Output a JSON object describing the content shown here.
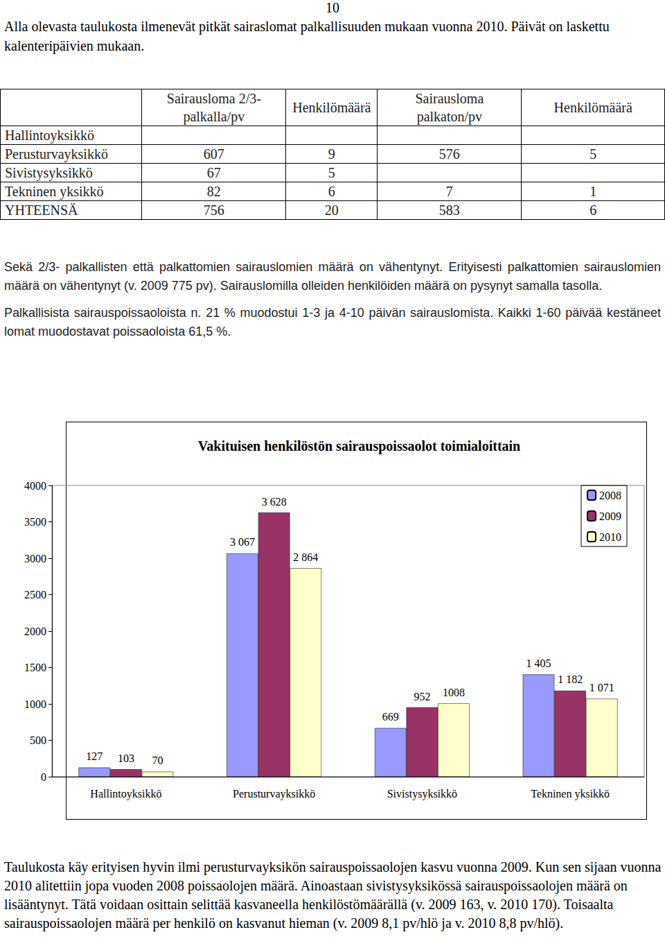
{
  "page_number": "10",
  "intro": "Alla olevasta taulukosta ilmenevät pitkät sairaslomat palkallisuuden mukaan vuonna 2010. Päivät on laskettu kalenteripäivien mukaan.",
  "table": {
    "header": [
      null,
      [
        "Sairausloma 2/3-",
        "palkalla/pv"
      ],
      [
        "Henkilömäärä"
      ],
      [
        "Sairausloma",
        "palkaton/pv"
      ],
      [
        "Henkilömäärä"
      ]
    ],
    "rows": [
      [
        "Hallintoyksikkö",
        null,
        null,
        null,
        null
      ],
      [
        "Perusturvayksikkö",
        607,
        9,
        576,
        5
      ],
      [
        "Sivistysyksikkö",
        67,
        5,
        null,
        null
      ],
      [
        "Tekninen yksikkö",
        82,
        6,
        7,
        1
      ],
      [
        "YHTEENSÄ",
        756,
        20,
        583,
        6
      ]
    ]
  },
  "paragraphs": [
    "Sekä 2/3- palkallisten että palkattomien sairauslomien määrä on vähentynyt. Erityisesti palkattomien sairauslomien määrä on vähentynyt (v. 2009 775 pv). Sairauslomilla olleiden henkilöiden määrä on pysynyt samalla tasolla.",
    "Palkallisista sairauspoissaoloista n. 21 % muodostui 1-3 ja 4-10 päivän sairauslomista. Kaikki 1-60 päivää kestäneet lomat muodostavat poissaoloista 61,5 %."
  ],
  "chart_data": {
    "type": "bar",
    "title": "Vakituisen henkilöstön sairauspoissaolot toimialoittain",
    "categories": [
      "Hallintoyksikkö",
      "Perusturvayksikkö",
      "Sivistysyksikkö",
      "Tekninen yksikkö"
    ],
    "series": [
      {
        "name": "2008",
        "color": "#9999ff",
        "values": [
          127,
          3067,
          669,
          1405
        ],
        "value_labels": [
          "127",
          "3 067",
          "669",
          "1 405"
        ]
      },
      {
        "name": "2009",
        "color": "#993366",
        "values": [
          103,
          3628,
          952,
          1182
        ],
        "value_labels": [
          "103",
          "3 628",
          "952",
          "1 182"
        ]
      },
      {
        "name": "2010",
        "color": "#ffffcc",
        "values": [
          70,
          2864,
          1008,
          1071
        ],
        "value_labels": [
          "70",
          "2 864",
          "1008",
          "1 071"
        ]
      }
    ],
    "ylim": [
      0,
      4000
    ],
    "yticks": [
      0,
      500,
      1000,
      1500,
      2000,
      2500,
      3000,
      3500,
      4000
    ],
    "grid": false,
    "legend": "top-right",
    "data_labels": true
  },
  "closing": "Taulukosta käy erityisen hyvin ilmi perusturvayksikön sairauspoissaolojen kasvu vuonna 2009. Kun sen sijaan vuonna 2010 alitettiin jopa vuoden 2008 poissaolojen määrä. Ainoastaan sivistysyksikössä sairauspoissaolojen määrä on lisääntynyt. Tätä voidaan osittain selittää kasvaneella henkilöstömäärällä (v. 2009 163, v. 2010 170). Toisaalta sairauspoissaolojen määrä per henkilö on kasvanut hieman (v. 2009 8,1 pv/hlö ja v. 2010 8,8 pv/hlö)."
}
